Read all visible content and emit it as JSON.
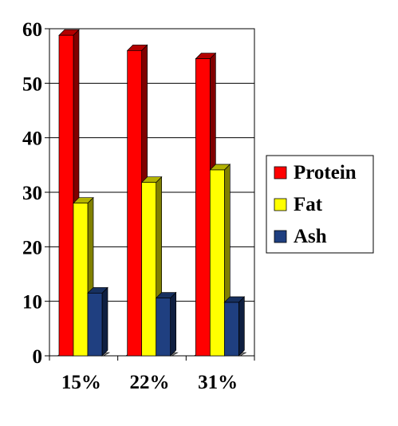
{
  "chart_data": {
    "type": "bar",
    "categories": [
      "15%",
      "22%",
      "31%"
    ],
    "series": [
      {
        "name": "Protein",
        "values": [
          58.8,
          56.0,
          54.5
        ],
        "color": "#ff0000",
        "side_color": "#800000",
        "top_color": "#b30000"
      },
      {
        "name": "Fat",
        "values": [
          28.0,
          31.8,
          34.1
        ],
        "color": "#ffff00",
        "side_color": "#808000",
        "top_color": "#b3b300"
      },
      {
        "name": "Ash",
        "values": [
          11.5,
          10.6,
          9.8
        ],
        "color": "#1f3f80",
        "side_color": "#0f1f40",
        "top_color": "#17305f"
      }
    ],
    "yticks": [
      "0",
      "10",
      "20",
      "30",
      "40",
      "50",
      "60"
    ],
    "ylim": [
      0,
      60
    ],
    "grid": true,
    "legend": "right"
  }
}
